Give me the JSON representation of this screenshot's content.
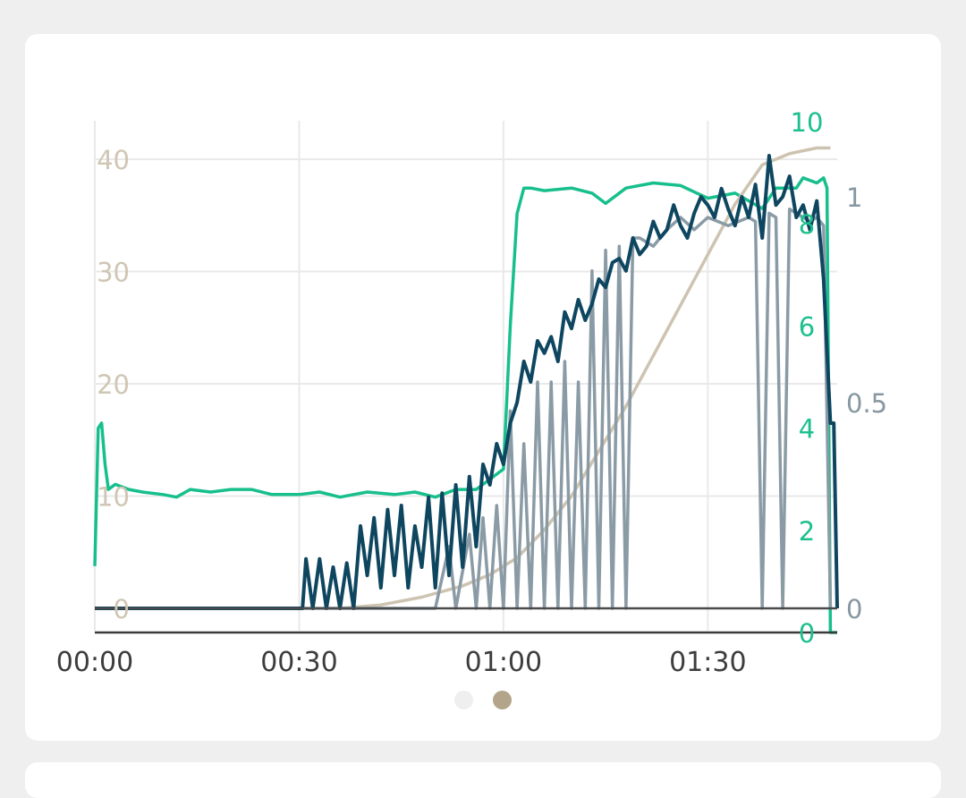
{
  "colors": {
    "left_axis": "#cfc6b3",
    "right_axis_green": "#1dbf8e",
    "right_axis_grey": "#8797a1",
    "x_axis": "#3a3a3a",
    "dark_series": "#0e4660",
    "grey_series": "#8a9ba6",
    "green_series": "#17bf8c",
    "beige_series": "#cdc3b0",
    "dot_inactive": "#efefef",
    "dot_active": "#b3a58a"
  },
  "pager": {
    "count": 2,
    "active": 1
  },
  "chart_data": {
    "type": "line",
    "title": "",
    "x_axis": {
      "ticks": [
        "00:00",
        "00:30",
        "01:00",
        "01:30"
      ],
      "tick_values_min": [
        0,
        30,
        60,
        90
      ],
      "range_min": [
        0,
        109
      ]
    },
    "y_axes": [
      {
        "id": "left",
        "ticks": [
          "0",
          "10",
          "20",
          "30",
          "40"
        ],
        "range": [
          0,
          42
        ]
      },
      {
        "id": "right_green",
        "ticks": [
          "0",
          "2",
          "4",
          "6",
          "8",
          "10"
        ],
        "range": [
          0,
          10
        ]
      },
      {
        "id": "right_grey",
        "ticks": [
          "0",
          "0.5",
          "1"
        ],
        "range": [
          0,
          1.2
        ]
      }
    ],
    "grid": true,
    "legend": "none",
    "series": [
      {
        "axis": "right_green",
        "color": "green",
        "x": [
          0,
          0.5,
          1,
          1.5,
          2,
          3,
          5,
          7,
          10,
          12,
          14,
          17,
          20,
          23,
          26,
          30,
          33,
          36,
          40,
          44,
          47,
          50,
          53,
          56,
          59,
          60,
          61,
          62,
          63,
          64,
          66,
          70,
          73,
          75,
          78,
          82,
          86,
          90,
          94,
          98,
          100,
          102,
          103,
          104,
          106,
          107,
          107.5,
          108,
          109
        ],
        "y": [
          1.3,
          4.0,
          4.1,
          3.3,
          2.8,
          2.9,
          2.8,
          2.75,
          2.7,
          2.65,
          2.8,
          2.75,
          2.8,
          2.8,
          2.7,
          2.7,
          2.75,
          2.65,
          2.75,
          2.7,
          2.75,
          2.65,
          2.8,
          2.8,
          3.1,
          3.2,
          6.0,
          8.2,
          8.7,
          8.7,
          8.65,
          8.7,
          8.6,
          8.4,
          8.7,
          8.8,
          8.75,
          8.5,
          8.6,
          8.3,
          8.7,
          8.7,
          8.7,
          8.9,
          8.8,
          8.9,
          8.7,
          0,
          0
        ]
      },
      {
        "axis": "left",
        "color": "beige",
        "x": [
          36,
          42,
          48,
          54,
          58,
          62,
          66,
          70,
          74,
          78,
          82,
          86,
          90,
          94,
          98,
          102,
          106,
          108
        ],
        "y": [
          0,
          0.3,
          1.0,
          2.0,
          3.0,
          4.5,
          7.0,
          10,
          14,
          18,
          22.5,
          27,
          31.5,
          36,
          39.5,
          40.5,
          41,
          41
        ]
      },
      {
        "axis": "right_grey",
        "color": "grey",
        "x": [
          0,
          50,
          52,
          53,
          55,
          56,
          57,
          58,
          59,
          60,
          61,
          62,
          63,
          64,
          65,
          66,
          67,
          68,
          69,
          70,
          71,
          72,
          73,
          74,
          75,
          76,
          77,
          78,
          79,
          80,
          82,
          84,
          86,
          88,
          90,
          93,
          96,
          97,
          98,
          99,
          100,
          101,
          102,
          103,
          104,
          105,
          106,
          107,
          108
        ],
        "y": [
          0,
          0,
          0.15,
          0,
          0.18,
          0,
          0.22,
          0,
          0.25,
          0,
          0.48,
          0,
          0.4,
          0,
          0.55,
          0,
          0.55,
          0,
          0.6,
          0,
          0.55,
          0,
          0.82,
          0,
          0.87,
          0,
          0.88,
          0,
          0.9,
          0.9,
          0.88,
          0.92,
          0.95,
          0.92,
          0.95,
          0.93,
          0.95,
          0.94,
          0,
          0.96,
          0.95,
          0,
          0.97,
          0.96,
          0.95,
          0.94,
          0.95,
          0.93,
          0
        ]
      },
      {
        "axis": "right_grey",
        "color": "dark",
        "x": [
          0,
          30.5,
          31,
          32,
          33,
          34,
          35,
          36,
          37,
          38,
          39,
          40,
          41,
          42,
          43,
          44,
          45,
          46,
          47,
          48,
          49,
          50,
          51,
          52,
          53,
          54,
          55,
          56,
          57,
          58,
          59,
          60,
          61,
          62,
          63,
          64,
          65,
          66,
          67,
          68,
          69,
          70,
          71,
          72,
          73,
          74,
          75,
          76,
          77,
          78,
          79,
          80,
          81,
          82,
          83,
          84,
          85,
          86,
          87,
          88,
          89,
          90,
          91,
          92,
          93,
          94,
          95,
          96,
          97,
          98,
          99,
          100,
          101,
          102,
          103,
          104,
          105,
          106,
          107,
          108,
          108.5,
          109
        ],
        "y": [
          0,
          0,
          0.12,
          0,
          0.12,
          0,
          0.1,
          0,
          0.11,
          0,
          0.2,
          0.08,
          0.22,
          0.05,
          0.24,
          0.08,
          0.25,
          0.05,
          0.2,
          0.1,
          0.27,
          0.05,
          0.28,
          0.08,
          0.3,
          0.1,
          0.32,
          0.15,
          0.35,
          0.3,
          0.4,
          0.35,
          0.45,
          0.5,
          0.6,
          0.55,
          0.65,
          0.62,
          0.66,
          0.6,
          0.72,
          0.68,
          0.75,
          0.7,
          0.74,
          0.8,
          0.78,
          0.84,
          0.85,
          0.82,
          0.9,
          0.86,
          0.88,
          0.94,
          0.9,
          0.92,
          0.98,
          0.93,
          0.9,
          0.96,
          1.0,
          0.98,
          0.95,
          1.02,
          0.97,
          0.93,
          1.0,
          0.95,
          1.03,
          0.9,
          1.1,
          0.98,
          1.0,
          1.05,
          0.95,
          0.98,
          0.92,
          0.99,
          0.8,
          0.45,
          0.45,
          0
        ]
      }
    ]
  }
}
